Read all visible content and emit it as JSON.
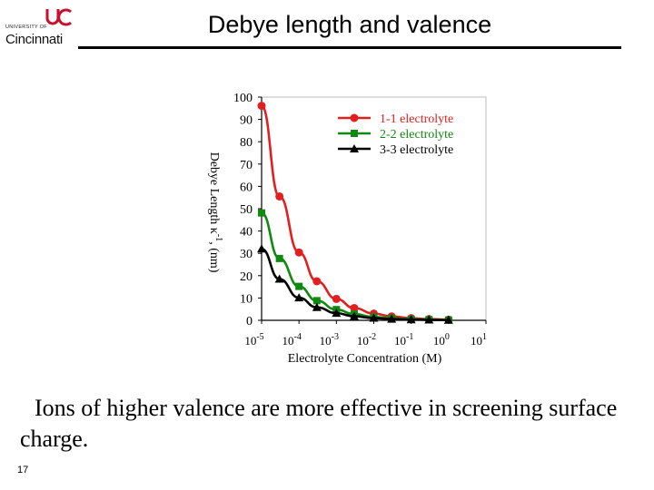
{
  "slide": {
    "title": "Debye length and valence",
    "logo_top": "UNIVERSITY OF",
    "logo_name": "Cincinnati",
    "caption": "Ions of higher valence are more effective in screening surface charge.",
    "slide_number": "17"
  },
  "colors": {
    "series1": "#e02020",
    "series2": "#118811",
    "series3": "#000000"
  },
  "chart_data": {
    "type": "line",
    "title": "",
    "ylabel_prefix": "Debye Length  κ",
    "ylabel_exp": "-1",
    "ylabel_suffix": ", (nm)",
    "xlabel": "Electrolyte Concentration (M)",
    "xscale": "log",
    "xlim_exp": [
      -5,
      1
    ],
    "ylim": [
      0,
      100
    ],
    "yticks": [
      "0",
      "10",
      "20",
      "30",
      "40",
      "50",
      "60",
      "70",
      "80",
      "90",
      "100"
    ],
    "xticks": [
      {
        "base": "10",
        "exp": "-5"
      },
      {
        "base": "10",
        "exp": "-4"
      },
      {
        "base": "10",
        "exp": "-3"
      },
      {
        "base": "10",
        "exp": "-2"
      },
      {
        "base": "10",
        "exp": "-1"
      },
      {
        "base": "10",
        "exp": "0"
      },
      {
        "base": "10",
        "exp": "1"
      }
    ],
    "legend_position": "top-right",
    "series": [
      {
        "name": "1-1 electrolyte",
        "marker": "circle",
        "x": [
          1e-05,
          3e-05,
          0.0001,
          0.0003,
          0.001,
          0.003,
          0.01,
          0.03,
          0.1,
          0.3,
          1
        ],
        "y": [
          96.1,
          55.5,
          30.4,
          17.5,
          9.6,
          5.5,
          3.0,
          1.75,
          0.96,
          0.55,
          0.3
        ]
      },
      {
        "name": "2-2 electrolyte",
        "marker": "square",
        "x": [
          1e-05,
          3e-05,
          0.0001,
          0.0003,
          0.001,
          0.003,
          0.01,
          0.03,
          0.1,
          0.3,
          1
        ],
        "y": [
          48.1,
          27.7,
          15.2,
          8.8,
          4.8,
          2.8,
          1.5,
          0.88,
          0.48,
          0.28,
          0.15
        ]
      },
      {
        "name": "3-3 electrolyte",
        "marker": "triangle",
        "x": [
          1e-05,
          3e-05,
          0.0001,
          0.0003,
          0.001,
          0.003,
          0.01,
          0.03,
          0.1,
          0.3,
          1
        ],
        "y": [
          32.0,
          18.5,
          10.1,
          5.8,
          3.2,
          1.8,
          1.0,
          0.58,
          0.32,
          0.18,
          0.1
        ]
      }
    ]
  }
}
